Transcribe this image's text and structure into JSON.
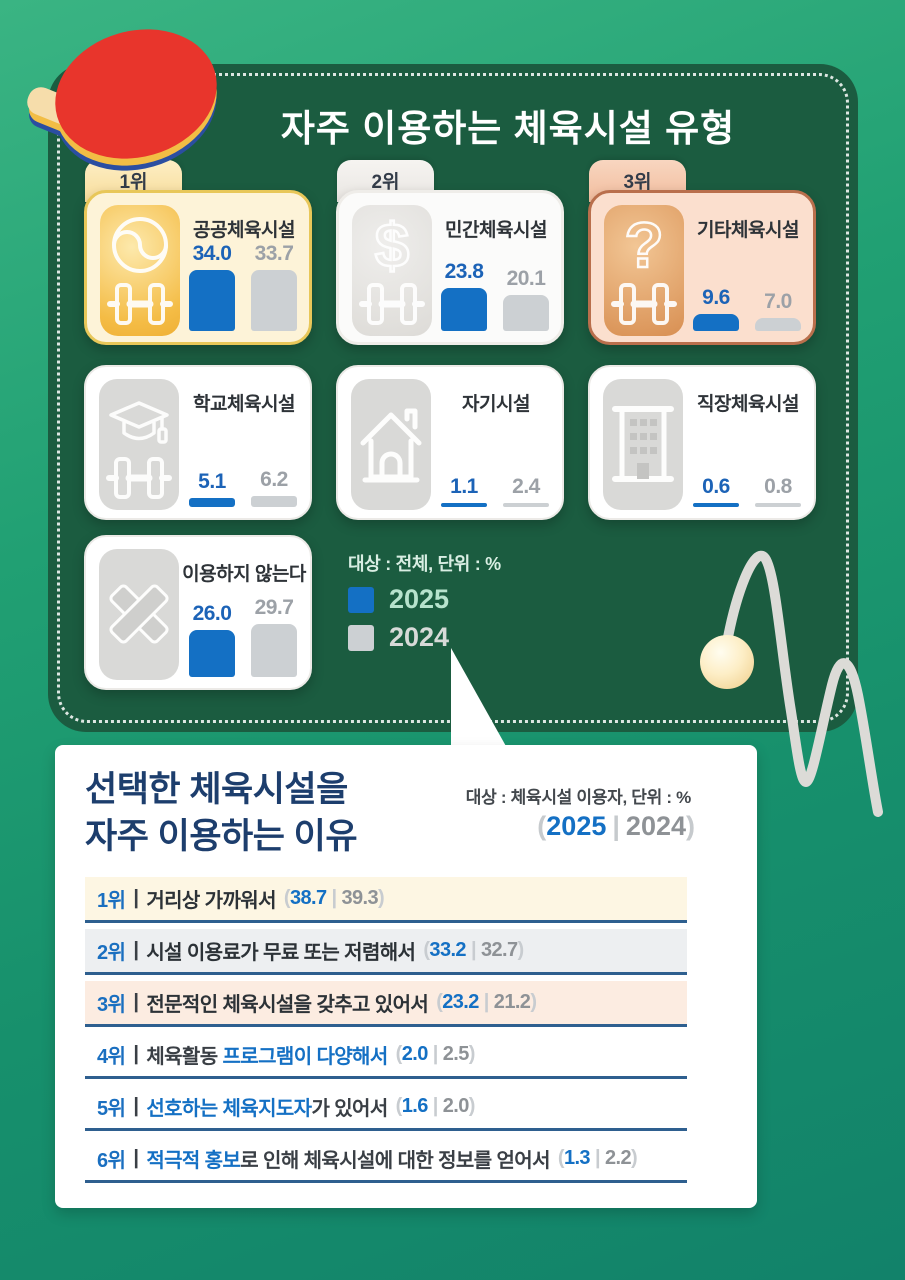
{
  "board": {
    "title": "자주 이용하는 체육시설 유형",
    "legend": {
      "note": "대상 : 전체, 단위 : %",
      "items": [
        {
          "label": "2025",
          "swatch": "#1470c4",
          "text_color": "#b7e3cd"
        },
        {
          "label": "2024",
          "swatch": "#ccd0d3",
          "text_color": "#d7dad8"
        }
      ]
    },
    "facility_cards": [
      {
        "rank": "1위",
        "name": "공공체육시설",
        "icon": "taegeuk-dumbbell-icon",
        "v2025": "34.0",
        "v2024": "33.7",
        "theme": "gold"
      },
      {
        "rank": "2위",
        "name": "민간체육시설",
        "icon": "dollar-dumbbell-icon",
        "v2025": "23.8",
        "v2024": "20.1",
        "theme": "silver"
      },
      {
        "rank": "3위",
        "name": "기타체육시설",
        "icon": "question-dumbbell-icon",
        "v2025": "9.6",
        "v2024": "7.0",
        "theme": "bronze"
      },
      {
        "rank": "",
        "name": "학교체육시설",
        "icon": "gradcap-dumbbell-icon",
        "v2025": "5.1",
        "v2024": "6.2",
        "theme": "plain"
      },
      {
        "rank": "",
        "name": "자기시설",
        "icon": "house-icon",
        "v2025": "1.1",
        "v2024": "2.4",
        "theme": "plain"
      },
      {
        "rank": "",
        "name": "직장체육시설",
        "icon": "building-icon",
        "v2025": "0.6",
        "v2024": "0.8",
        "theme": "plain"
      },
      {
        "rank": "",
        "name": "이용하지 않는다",
        "icon": "x-mark-icon",
        "v2025": "26.0",
        "v2024": "29.7",
        "theme": "plain"
      }
    ]
  },
  "reasons": {
    "title_line1": "선택한 체육시설을",
    "title_line2": "자주 이용하는 이유",
    "note": "대상 : 체육시설 이용자, 단위 : %",
    "year1": "2025",
    "year2": "2024",
    "rows": [
      {
        "rank": "1위",
        "segments": [
          {
            "t": "거리상 가까워서",
            "c": "dark"
          }
        ],
        "v2025": "38.7",
        "v2024": "39.3",
        "bg": "#fdf6e3"
      },
      {
        "rank": "2위",
        "segments": [
          {
            "t": "시설 이용료가 무료 또는 저렴해서",
            "c": "dark"
          }
        ],
        "v2025": "33.2",
        "v2024": "32.7",
        "bg": "#edeff1"
      },
      {
        "rank": "3위",
        "segments": [
          {
            "t": "전문적인 체육시설을 갖추고 있어서",
            "c": "dark"
          }
        ],
        "v2025": "23.2",
        "v2024": "21.2",
        "bg": "#fcece1"
      },
      {
        "rank": "4위",
        "segments": [
          {
            "t": "체육활동 ",
            "c": "plain"
          },
          {
            "t": "프로그램이 다양해서",
            "c": "blue"
          }
        ],
        "v2025": "2.0",
        "v2024": "2.5",
        "bg": "#ffffff"
      },
      {
        "rank": "5위",
        "segments": [
          {
            "t": "선호하는 체육지도자",
            "c": "blue"
          },
          {
            "t": "가 있어서",
            "c": "plain"
          }
        ],
        "v2025": "1.6",
        "v2024": "2.0",
        "bg": "#ffffff"
      },
      {
        "rank": "6위",
        "segments": [
          {
            "t": "적극적 홍보",
            "c": "blue"
          },
          {
            "t": "로 인해 체육시설에 대한 정보를 얻어서",
            "c": "plain"
          }
        ],
        "v2025": "1.3",
        "v2024": "2.2",
        "bg": "#ffffff"
      }
    ]
  },
  "colors": {
    "accent_blue": "#1470c4",
    "value_gray": "#9ca1a7",
    "bar_gray": "#ccd0d3",
    "board_green": "#1b5c40",
    "background_teal": "#17906c",
    "navy_title": "#1d3e6d"
  },
  "chart_data": [
    {
      "type": "bar",
      "title": "자주 이용하는 체육시설 유형",
      "note": "대상 : 전체, 단위 : %",
      "categories": [
        "공공체육시설",
        "민간체육시설",
        "기타체육시설",
        "학교체육시설",
        "자기시설",
        "직장체육시설",
        "이용하지 않는다"
      ],
      "series": [
        {
          "name": "2025",
          "values": [
            34.0,
            23.8,
            9.6,
            5.1,
            1.1,
            0.6,
            26.0
          ]
        },
        {
          "name": "2024",
          "values": [
            33.7,
            20.1,
            7.0,
            6.2,
            2.4,
            0.8,
            29.7
          ]
        }
      ],
      "ranks": [
        "1위",
        "2위",
        "3위",
        "",
        "",
        "",
        ""
      ],
      "legend_position": "bottom-center",
      "ylabel": "%"
    },
    {
      "type": "table",
      "title": "선택한 체육시설을 자주 이용하는 이유",
      "note": "대상 : 체육시설 이용자, 단위 : %",
      "categories": [
        "거리상 가까워서",
        "시설 이용료가 무료 또는 저렴해서",
        "전문적인 체육시설을 갖추고 있어서",
        "체육활동 프로그램이 다양해서",
        "선호하는 체육지도자가 있어서",
        "적극적 홍보로 인해 체육시설에 대한 정보를 얻어서"
      ],
      "series": [
        {
          "name": "2025",
          "values": [
            38.7,
            33.2,
            23.2,
            2.0,
            1.6,
            1.3
          ]
        },
        {
          "name": "2024",
          "values": [
            39.3,
            32.7,
            21.2,
            2.5,
            2.0,
            2.2
          ]
        }
      ],
      "ranks": [
        "1위",
        "2위",
        "3위",
        "4위",
        "5위",
        "6위"
      ]
    }
  ]
}
